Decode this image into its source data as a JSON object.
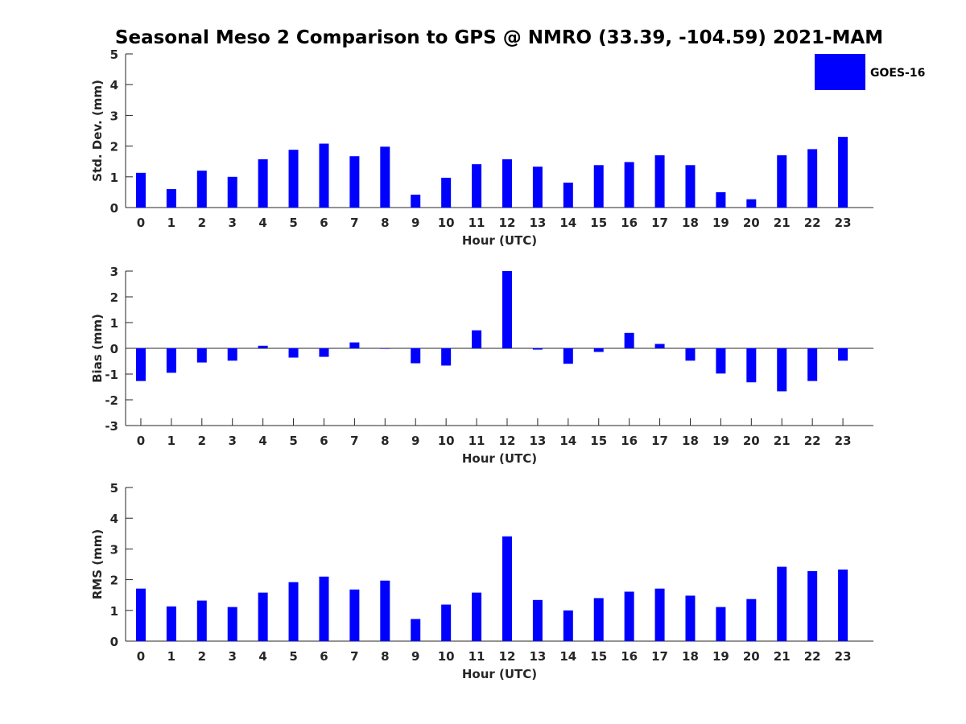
{
  "chart_data": {
    "type": "bar",
    "title": "Seasonal Meso 2 Comparison to GPS @ NMRO (33.39, -104.59) 2021-MAM",
    "legend": {
      "entries": [
        "GOES-16"
      ],
      "placement": "top-right",
      "color": "#0000ff"
    },
    "categories": [
      "0",
      "1",
      "2",
      "3",
      "4",
      "5",
      "6",
      "7",
      "8",
      "9",
      "10",
      "11",
      "12",
      "13",
      "14",
      "15",
      "16",
      "17",
      "18",
      "19",
      "20",
      "21",
      "22",
      "23"
    ],
    "panels": [
      {
        "name": "std-dev",
        "ylabel": "Std. Dev. (mm)",
        "xlabel": "Hour (UTC)",
        "ylim": [
          0,
          5
        ],
        "yticks": [
          0,
          1,
          2,
          3,
          4,
          5
        ],
        "series": [
          {
            "name": "GOES-16",
            "color": "#0000ff",
            "values": [
              1.13,
              0.6,
              1.2,
              1.0,
              1.57,
              1.88,
              2.08,
              1.67,
              1.98,
              0.42,
              0.97,
              1.41,
              1.57,
              1.33,
              0.81,
              1.38,
              1.48,
              1.7,
              1.38,
              0.5,
              0.27,
              1.7,
              1.9,
              2.3
            ]
          }
        ]
      },
      {
        "name": "bias",
        "ylabel": "Bias (mm)",
        "xlabel": "Hour (UTC)",
        "ylim": [
          -3,
          3
        ],
        "yticks": [
          -3,
          -2,
          -1,
          0,
          1,
          2,
          3
        ],
        "zero_line": true,
        "series": [
          {
            "name": "GOES-16",
            "color": "#0000ff",
            "values": [
              -1.27,
              -0.95,
              -0.55,
              -0.48,
              0.1,
              -0.36,
              -0.33,
              0.23,
              -0.02,
              -0.58,
              -0.67,
              0.7,
              3.0,
              -0.05,
              -0.6,
              -0.14,
              0.6,
              0.17,
              -0.48,
              -0.98,
              -1.32,
              -1.67,
              -1.27,
              -0.48
            ]
          }
        ]
      },
      {
        "name": "rms",
        "ylabel": "RMS (mm)",
        "xlabel": "Hour (UTC)",
        "ylim": [
          0,
          5
        ],
        "yticks": [
          0,
          1,
          2,
          3,
          4,
          5
        ],
        "series": [
          {
            "name": "GOES-16",
            "color": "#0000ff",
            "values": [
              1.71,
              1.13,
              1.32,
              1.11,
              1.58,
              1.92,
              2.1,
              1.68,
              1.97,
              0.72,
              1.19,
              1.58,
              3.41,
              1.34,
              1.0,
              1.4,
              1.61,
              1.71,
              1.48,
              1.11,
              1.37,
              2.42,
              2.28,
              2.33
            ]
          }
        ]
      }
    ],
    "grid": false
  }
}
